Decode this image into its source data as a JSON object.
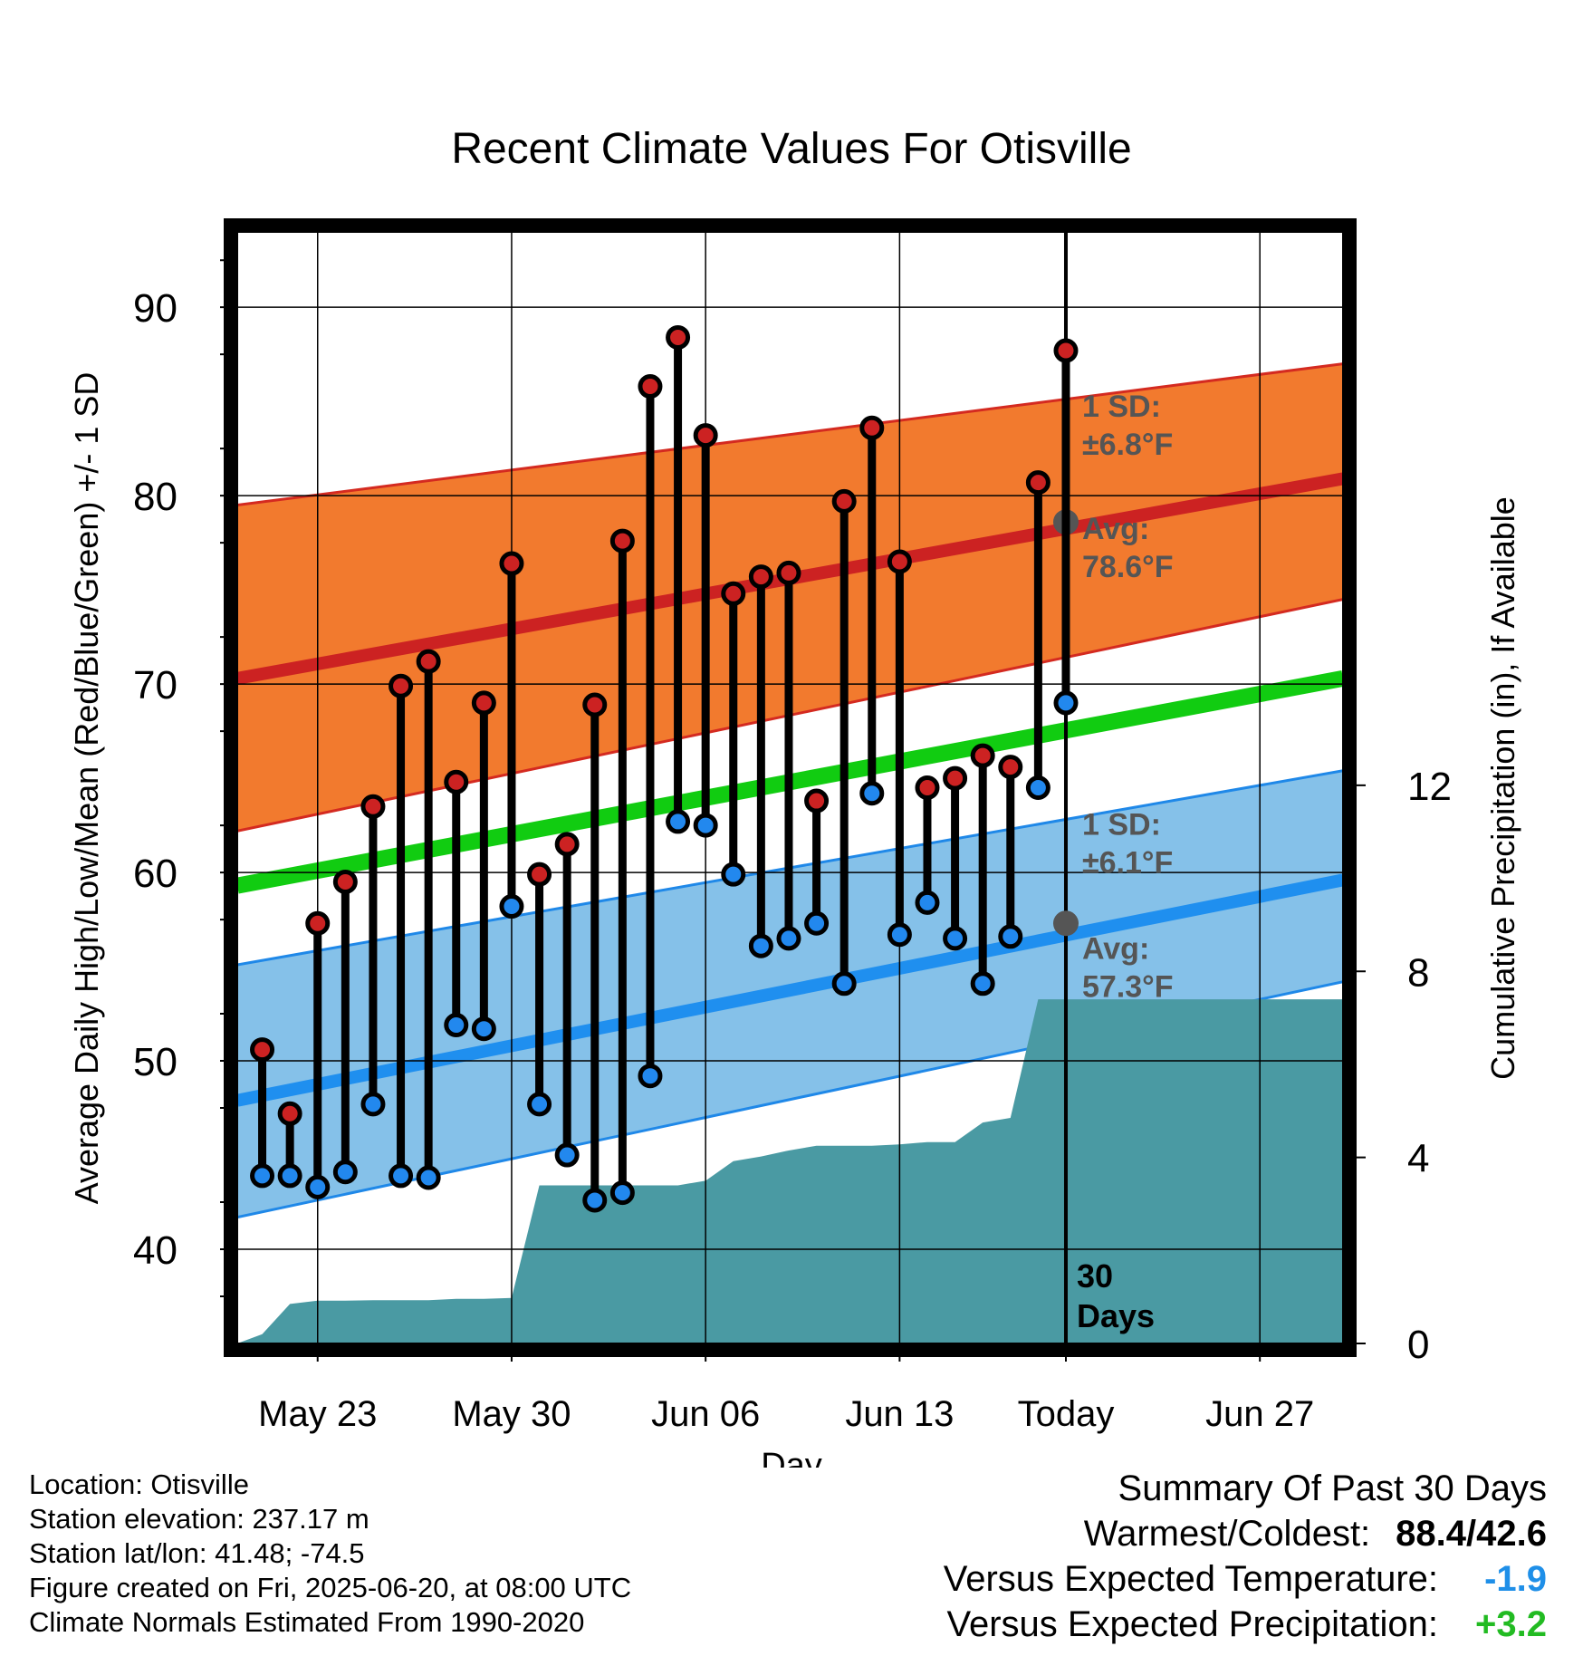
{
  "chart_data": {
    "type": "line",
    "title": "Recent Climate Values For Otisville",
    "xlabel": "Day",
    "ylabel": "Average Daily High/Low/Mean (Red/Blue/Green) +/- 1 SD",
    "ylabel_right": "Cumulative Precipitation (in), If Available",
    "x_ticks": [
      "May 23",
      "May 30",
      "Jun 06",
      "Jun 13",
      "Today",
      "Jun 27"
    ],
    "ylim": [
      35,
      94
    ],
    "y_ticks": [
      40,
      50,
      60,
      70,
      80,
      90
    ],
    "ylim_right": [
      0,
      23.9
    ],
    "y_ticks_right": [
      0,
      4,
      8,
      12
    ],
    "x_range_days": [
      -29.9,
      10.0
    ],
    "today_marker": "30\nDays",
    "normals": {
      "high_avg_start": 70.3,
      "high_avg_end": 80.9,
      "high_sd_label": "1 SD:\n±6.8°F",
      "high_avg_label": "Avg:\n78.6°F",
      "high_avg_today": 78.6,
      "low_avg_start": 47.9,
      "low_avg_end": 59.6,
      "low_sd_label": "1 SD:\n±6.1°F",
      "low_avg_label": "Avg:\n57.3°F",
      "low_avg_today": 57.3,
      "mean_start": 59.3,
      "mean_end": 70.3,
      "high_band_top": [
        79.5,
        87.0
      ],
      "high_band_bottom": [
        62.2,
        74.5
      ],
      "low_band_top": [
        55.1,
        65.4
      ],
      "low_band_bottom": [
        41.7,
        54.2
      ]
    },
    "series": [
      {
        "name": "High",
        "color": "#cc2222",
        "x": [
          -29,
          -28,
          -27,
          -26,
          -25,
          -24,
          -23,
          -22,
          -21,
          -20,
          -19,
          -18,
          -17,
          -16,
          -15,
          -14,
          -13,
          -12,
          -11,
          -10,
          -9,
          -8,
          -7,
          -6,
          -5,
          -4,
          -3,
          -2,
          -1,
          0
        ],
        "values": [
          50.6,
          47.2,
          57.3,
          59.5,
          63.5,
          69.9,
          71.2,
          64.8,
          69.0,
          76.4,
          59.9,
          61.5,
          68.9,
          77.6,
          85.8,
          88.4,
          83.2,
          74.8,
          75.7,
          75.9,
          63.8,
          79.7,
          83.6,
          76.5,
          64.5,
          65.0,
          66.2,
          65.6,
          80.7,
          87.7
        ]
      },
      {
        "name": "Low",
        "color": "#2288ee",
        "x": [
          -29,
          -28,
          -27,
          -26,
          -25,
          -24,
          -23,
          -22,
          -21,
          -20,
          -19,
          -18,
          -17,
          -16,
          -15,
          -14,
          -13,
          -12,
          -11,
          -10,
          -9,
          -8,
          -7,
          -6,
          -5,
          -4,
          -3,
          -2,
          -1,
          0
        ],
        "values": [
          43.9,
          43.9,
          43.3,
          44.1,
          47.7,
          43.9,
          43.8,
          51.9,
          51.7,
          58.2,
          47.7,
          45.0,
          42.6,
          43.0,
          49.2,
          62.7,
          62.5,
          59.9,
          56.1,
          56.5,
          57.3,
          54.1,
          64.2,
          56.7,
          58.4,
          56.5,
          54.1,
          56.6,
          64.5,
          69.0
        ]
      },
      {
        "name": "Cumulative Precipitation",
        "color": "#4a9aa3",
        "x": [
          -29.9,
          -29,
          -28,
          -27,
          -26,
          -25,
          -24,
          -23,
          -22,
          -21,
          -20,
          -19,
          -18,
          -17,
          -16,
          -15,
          -14,
          -13,
          -12,
          -11,
          -10,
          -9,
          -8,
          -7,
          -6,
          -5,
          -4,
          -3,
          -2,
          -1,
          0,
          10
        ],
        "values": [
          0.0,
          0.2,
          0.85,
          0.92,
          0.92,
          0.93,
          0.93,
          0.93,
          0.96,
          0.96,
          0.98,
          3.4,
          3.4,
          3.4,
          3.4,
          3.4,
          3.4,
          3.5,
          3.92,
          4.02,
          4.15,
          4.25,
          4.25,
          4.25,
          4.28,
          4.33,
          4.33,
          4.75,
          4.85,
          7.4,
          7.4,
          7.4
        ]
      }
    ]
  },
  "footer": {
    "location": "Location: Otisville",
    "elevation": "Station elevation: 237.17 m",
    "latlon": "Station lat/lon: 41.48; -74.5",
    "created": "Figure created on Fri, 2025-06-20, at 08:00 UTC",
    "normals": "Climate Normals Estimated From 1990-2020"
  },
  "summary": {
    "title": "Summary Of Past 30 Days",
    "warm_cold_label": "Warmest/Coldest:",
    "warm_cold_value": "88.4/42.6",
    "temp_label": "Versus Expected Temperature:",
    "temp_value": "-1.9",
    "temp_color": "#1f8fe8",
    "precip_label": "Versus Expected Precipitation:",
    "precip_value": "+3.2",
    "precip_color": "#22bb22"
  }
}
